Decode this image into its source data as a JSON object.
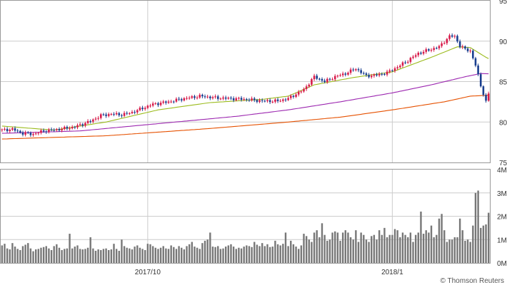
{
  "chart_data": [
    {
      "type": "candlestick",
      "panel": "price",
      "ylim": [
        75,
        95
      ],
      "yticks": [
        75,
        80,
        85,
        90,
        95
      ],
      "grid": true,
      "x_ticks": [
        {
          "label": "2017/10",
          "index": 56
        },
        {
          "label": "2018/1",
          "index": 150
        }
      ],
      "series": [
        {
          "kind": "candles",
          "up_color": "#d81b4a",
          "down_color": "#1a3f8f",
          "anchors": [
            [
              0,
              79.0
            ],
            [
              4,
              79.1
            ],
            [
              8,
              78.6
            ],
            [
              12,
              78.5
            ],
            [
              16,
              78.9
            ],
            [
              22,
              79.1
            ],
            [
              28,
              79.4
            ],
            [
              34,
              80.1
            ],
            [
              38,
              80.8
            ],
            [
              42,
              81.0
            ],
            [
              46,
              80.9
            ],
            [
              50,
              81.2
            ],
            [
              54,
              81.7
            ],
            [
              58,
              82.2
            ],
            [
              64,
              82.5
            ],
            [
              70,
              82.9
            ],
            [
              76,
              83.2
            ],
            [
              82,
              83.0
            ],
            [
              88,
              82.9
            ],
            [
              94,
              82.8
            ],
            [
              100,
              82.6
            ],
            [
              106,
              82.6
            ],
            [
              110,
              82.9
            ],
            [
              116,
              84.0
            ],
            [
              120,
              85.6
            ],
            [
              124,
              85.0
            ],
            [
              128,
              85.6
            ],
            [
              132,
              86.0
            ],
            [
              136,
              86.6
            ],
            [
              140,
              85.7
            ],
            [
              144,
              85.8
            ],
            [
              148,
              86.1
            ],
            [
              152,
              86.8
            ],
            [
              156,
              87.6
            ],
            [
              160,
              88.5
            ],
            [
              164,
              88.9
            ],
            [
              168,
              89.3
            ],
            [
              172,
              90.6
            ],
            [
              174,
              90.6
            ],
            [
              176,
              89.4
            ],
            [
              178,
              89.0
            ],
            [
              180,
              88.8
            ],
            [
              182,
              87.0
            ],
            [
              184,
              84.5
            ],
            [
              186,
              82.5
            ],
            [
              188,
              84.5
            ],
            [
              190,
              82.0
            ],
            [
              192,
              82.7
            ]
          ]
        },
        {
          "kind": "ma",
          "name": "",
          "color": "#9bbb1c",
          "anchors": [
            [
              0,
              79.5
            ],
            [
              20,
              79.0
            ],
            [
              40,
              80.0
            ],
            [
              60,
              81.5
            ],
            [
              80,
              82.4
            ],
            [
              100,
              82.8
            ],
            [
              110,
              83.2
            ],
            [
              120,
              84.6
            ],
            [
              135,
              85.5
            ],
            [
              150,
              86.2
            ],
            [
              165,
              88.0
            ],
            [
              175,
              89.3
            ],
            [
              180,
              89.2
            ],
            [
              186,
              88.0
            ],
            [
              192,
              87.0
            ]
          ]
        },
        {
          "kind": "ma",
          "name": "",
          "color": "#9c27b0",
          "anchors": [
            [
              0,
              78.6
            ],
            [
              30,
              78.9
            ],
            [
              60,
              79.8
            ],
            [
              90,
              80.7
            ],
            [
              110,
              81.5
            ],
            [
              130,
              82.5
            ],
            [
              150,
              83.6
            ],
            [
              165,
              84.6
            ],
            [
              178,
              85.6
            ],
            [
              184,
              86.0
            ],
            [
              192,
              85.9
            ]
          ]
        },
        {
          "kind": "ma",
          "name": "",
          "color": "#e65100",
          "anchors": [
            [
              0,
              77.9
            ],
            [
              40,
              78.3
            ],
            [
              80,
              79.2
            ],
            [
              110,
              80.0
            ],
            [
              130,
              80.6
            ],
            [
              150,
              81.5
            ],
            [
              170,
              82.5
            ],
            [
              180,
              83.2
            ],
            [
              192,
              83.4
            ]
          ]
        }
      ]
    },
    {
      "type": "bar",
      "panel": "volume",
      "ylim": [
        0,
        4
      ],
      "ytick_labels": [
        "0M",
        "1M",
        "2M",
        "3M",
        "4M"
      ],
      "unit": "M",
      "color": "#777777",
      "values": [
        0.75,
        0.82,
        0.62,
        0.58,
        0.85,
        0.7,
        0.6,
        0.55,
        0.72,
        0.78,
        0.85,
        0.62,
        0.5,
        0.58,
        0.6,
        0.65,
        0.68,
        0.72,
        0.62,
        0.55,
        0.72,
        0.8,
        0.65,
        0.55,
        0.6,
        0.62,
        1.25,
        0.62,
        0.7,
        0.75,
        0.6,
        0.58,
        0.6,
        0.65,
        1.1,
        0.62,
        0.52,
        0.58,
        0.55,
        0.6,
        0.62,
        0.55,
        0.58,
        0.82,
        0.6,
        0.52,
        1.0,
        0.72,
        0.65,
        0.62,
        0.58,
        0.7,
        0.75,
        0.65,
        0.6,
        0.55,
        0.82,
        0.8,
        0.72,
        0.65,
        0.6,
        0.65,
        0.72,
        0.62,
        0.6,
        0.75,
        0.68,
        0.6,
        0.72,
        0.65,
        0.58,
        0.72,
        0.8,
        0.9,
        0.7,
        0.65,
        0.6,
        0.85,
        0.95,
        1.0,
        1.3,
        0.7,
        0.68,
        0.72,
        0.6,
        0.62,
        0.7,
        0.75,
        0.8,
        0.7,
        0.6,
        0.65,
        0.62,
        0.7,
        0.75,
        0.72,
        0.68,
        0.9,
        0.78,
        0.72,
        0.85,
        0.72,
        0.8,
        0.68,
        0.7,
        0.95,
        0.8,
        0.75,
        0.82,
        1.3,
        0.72,
        0.95,
        0.8,
        0.7,
        0.6,
        0.75,
        1.25,
        1.15,
        1.0,
        0.9,
        1.3,
        1.4,
        1.1,
        1.7,
        1.2,
        0.95,
        1.0,
        1.3,
        1.35,
        1.3,
        0.95,
        1.3,
        1.4,
        1.3,
        1.1,
        1.0,
        1.4,
        0.9,
        1.3,
        1.2,
        1.0,
        0.9,
        1.15,
        1.2,
        1.0,
        1.4,
        1.2,
        1.5,
        1.1,
        1.2,
        1.2,
        1.45,
        1.4,
        1.1,
        1.3,
        1.2,
        1.1,
        1.3,
        0.9,
        1.2,
        1.3,
        2.2,
        1.25,
        1.4,
        1.3,
        1.6,
        1.1,
        1.2,
        1.9,
        2.1,
        1.4,
        0.9,
        1.0,
        1.0,
        1.1,
        1.1,
        1.9,
        1.4,
        0.95,
        1.0,
        0.9,
        1.6,
        3.0,
        3.1,
        1.5,
        1.6,
        1.65,
        2.15
      ]
    }
  ],
  "credit": "© Thomson Reuters"
}
